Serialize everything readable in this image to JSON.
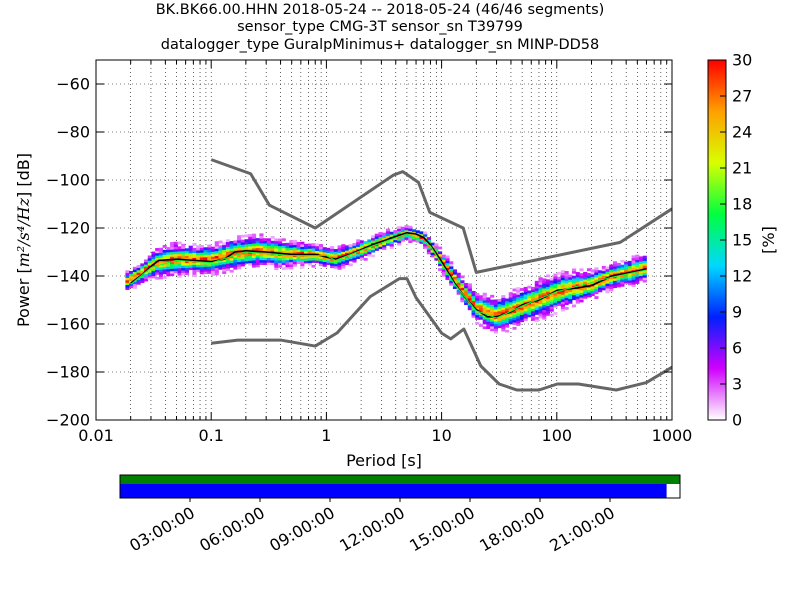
{
  "header": {
    "title_line_1": "BK.BK66.00.HHN   2018-05-24 -- 2018-05-24  (46/46 segments)",
    "title_line_2": "sensor_type CMG-3T sensor_sn T39799",
    "title_line_3": "datalogger_type GuralpMinimus+ datalogger_sn MINP-DD58"
  },
  "chart_data": {
    "type": "heatmap",
    "xlabel": "Period [s]",
    "ylabel_prefix": "Power [",
    "ylabel_unit": "m²/s⁴/Hz",
    "ylabel_suffix": "] [dB]",
    "x_scale": "log",
    "xlim": [
      0.01,
      1000
    ],
    "ylim": [
      -200,
      -50
    ],
    "x_ticks": [
      {
        "value": 0.01,
        "label": "0.01"
      },
      {
        "value": 0.1,
        "label": "0.1"
      },
      {
        "value": 1,
        "label": "1"
      },
      {
        "value": 10,
        "label": "10"
      },
      {
        "value": 100,
        "label": "100"
      },
      {
        "value": 1000,
        "label": "1000"
      }
    ],
    "y_ticks": [
      {
        "value": -60,
        "label": "−60"
      },
      {
        "value": -80,
        "label": "−80"
      },
      {
        "value": -100,
        "label": "−100"
      },
      {
        "value": -120,
        "label": "−120"
      },
      {
        "value": -140,
        "label": "−140"
      },
      {
        "value": -160,
        "label": "−160"
      },
      {
        "value": -180,
        "label": "−180"
      },
      {
        "value": -200,
        "label": "−200"
      }
    ],
    "grid": true,
    "colorbar": {
      "label": "[%]",
      "range": [
        0,
        30
      ],
      "ticks": [
        {
          "value": 0,
          "label": "0"
        },
        {
          "value": 3,
          "label": "3"
        },
        {
          "value": 6,
          "label": "6"
        },
        {
          "value": 9,
          "label": "9"
        },
        {
          "value": 12,
          "label": "12"
        },
        {
          "value": 15,
          "label": "15"
        },
        {
          "value": 18,
          "label": "18"
        },
        {
          "value": 21,
          "label": "21"
        },
        {
          "value": 24,
          "label": "24"
        },
        {
          "value": 27,
          "label": "27"
        },
        {
          "value": 30,
          "label": "30"
        }
      ],
      "colors": [
        "#ffffff",
        "#d000ff",
        "#0020ff",
        "#00d8ff",
        "#00ff40",
        "#d8ff00",
        "#ffa000",
        "#ff0000"
      ]
    },
    "series": [
      {
        "role": "high-noise-model",
        "color": "#666666",
        "points": [
          [
            0.1,
            -91.5
          ],
          [
            0.22,
            -97.4
          ],
          [
            0.32,
            -110.5
          ],
          [
            0.8,
            -120
          ],
          [
            3.8,
            -98
          ],
          [
            4.6,
            -96.5
          ],
          [
            6.3,
            -101
          ],
          [
            7.9,
            -113.5
          ],
          [
            15.4,
            -120
          ],
          [
            20,
            -138.5
          ],
          [
            354.8,
            -126
          ],
          [
            1000,
            -112
          ]
        ]
      },
      {
        "role": "low-noise-model",
        "color": "#666666",
        "points": [
          [
            0.1,
            -168
          ],
          [
            0.17,
            -166.7
          ],
          [
            0.4,
            -166.7
          ],
          [
            0.8,
            -169.2
          ],
          [
            1.24,
            -163.7
          ],
          [
            2.4,
            -148.6
          ],
          [
            4.3,
            -141.1
          ],
          [
            5,
            -141.1
          ],
          [
            6,
            -149
          ],
          [
            10,
            -163.8
          ],
          [
            12,
            -166.2
          ],
          [
            15.6,
            -162.1
          ],
          [
            21.9,
            -177.5
          ],
          [
            31.6,
            -185
          ],
          [
            45,
            -187.5
          ],
          [
            70,
            -187.5
          ],
          [
            101,
            -185
          ],
          [
            154,
            -185
          ],
          [
            328,
            -187.5
          ],
          [
            600,
            -184.4
          ],
          [
            1000,
            -178
          ]
        ]
      },
      {
        "role": "mean-psd",
        "color": "#000000",
        "points": [
          [
            0.02,
            -143
          ],
          [
            0.025,
            -139.5
          ],
          [
            0.03,
            -136
          ],
          [
            0.035,
            -133.5
          ],
          [
            0.05,
            -133
          ],
          [
            0.07,
            -133.5
          ],
          [
            0.1,
            -134
          ],
          [
            0.13,
            -133
          ],
          [
            0.16,
            -130
          ],
          [
            0.2,
            -129.5
          ],
          [
            0.3,
            -130
          ],
          [
            0.5,
            -131
          ],
          [
            0.8,
            -131
          ],
          [
            1.2,
            -133
          ],
          [
            1.6,
            -131
          ],
          [
            2.5,
            -127
          ],
          [
            4,
            -123.5
          ],
          [
            5,
            -122
          ],
          [
            6,
            -122.5
          ],
          [
            7,
            -124
          ],
          [
            8,
            -127
          ],
          [
            10,
            -134
          ],
          [
            13,
            -143
          ],
          [
            16,
            -149
          ],
          [
            20,
            -154
          ],
          [
            25,
            -157
          ],
          [
            30,
            -157
          ],
          [
            40,
            -155
          ],
          [
            50,
            -152
          ],
          [
            70,
            -150
          ],
          [
            100,
            -146
          ],
          [
            150,
            -145
          ],
          [
            200,
            -144
          ],
          [
            300,
            -140
          ],
          [
            500,
            -138
          ],
          [
            600,
            -137
          ]
        ]
      },
      {
        "role": "mode-psd",
        "color": "#00ff40",
        "points": [
          [
            0.02,
            -143.5
          ],
          [
            0.03,
            -136.5
          ],
          [
            0.05,
            -133.5
          ],
          [
            0.1,
            -134.5
          ],
          [
            0.2,
            -130
          ],
          [
            0.5,
            -131.5
          ],
          [
            1,
            -131.5
          ],
          [
            1.2,
            -133.5
          ],
          [
            2.5,
            -127.5
          ],
          [
            5,
            -122.5
          ],
          [
            8,
            -127.5
          ],
          [
            13,
            -143.5
          ],
          [
            20,
            -154.5
          ],
          [
            30,
            -157.5
          ],
          [
            50,
            -152.5
          ],
          [
            100,
            -146.5
          ],
          [
            300,
            -140.5
          ],
          [
            600,
            -137.5
          ]
        ]
      }
    ],
    "density_band": [
      [
        0.018,
        -143,
        2.5
      ],
      [
        0.025,
        -139,
        3.0
      ],
      [
        0.033,
        -135,
        4.0
      ],
      [
        0.05,
        -133.5,
        4.5
      ],
      [
        0.1,
        -133.5,
        4.0
      ],
      [
        0.16,
        -131,
        4.5
      ],
      [
        0.25,
        -130,
        4.5
      ],
      [
        0.4,
        -131,
        4.0
      ],
      [
        0.8,
        -131.5,
        3.0
      ],
      [
        1.2,
        -133,
        3.0
      ],
      [
        2,
        -129.5,
        3.0
      ],
      [
        3.5,
        -125,
        2.5
      ],
      [
        5,
        -122.5,
        2.0
      ],
      [
        7,
        -124.5,
        2.0
      ],
      [
        10,
        -134,
        3.0
      ],
      [
        14,
        -144,
        3.5
      ],
      [
        20,
        -153.5,
        4.0
      ],
      [
        30,
        -157,
        5.0
      ],
      [
        50,
        -153,
        5.0
      ],
      [
        80,
        -149,
        5.5
      ],
      [
        120,
        -146,
        5.0
      ],
      [
        200,
        -144,
        4.0
      ],
      [
        300,
        -140.5,
        3.5
      ],
      [
        600,
        -137,
        4.0
      ]
    ]
  },
  "timeline": {
    "tick_labels": [
      "03:00:00",
      "06:00:00",
      "09:00:00",
      "12:00:00",
      "15:00:00",
      "18:00:00",
      "21:00:00"
    ],
    "top_bar_color": "#008000",
    "data_bar_color": "#0000ff",
    "data_coverage_fraction": 0.976
  }
}
